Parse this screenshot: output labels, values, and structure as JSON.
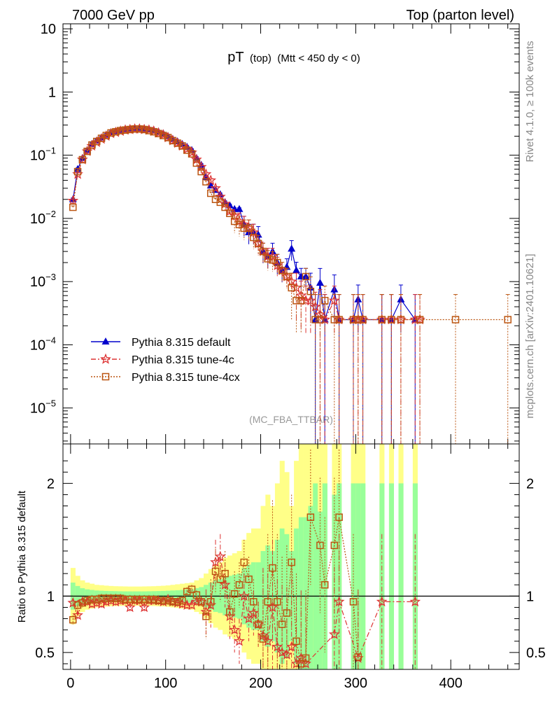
{
  "header": {
    "left": "7000 GeV pp",
    "right": "Top (parton level)"
  },
  "plot_title": {
    "main": "pT",
    "sub1": "(top)",
    "sub2": "(Mtt < 450 dy < 0)"
  },
  "side_labels": {
    "rivet": "Rivet 4.1.0, ≥ 100k events",
    "mcplots": "mcplots.cern.ch [arXiv:2401.10621]"
  },
  "analysis_tag": "(MC_FBA_TTBAR)",
  "ratio_ylabel": "Ratio to Pythia 8.315 default",
  "legend": [
    {
      "label": "Pythia 8.315 default",
      "color": "#0000cc",
      "marker": "triangle"
    },
    {
      "label": "Pythia 8.315 tune-4c",
      "color": "#dd3333",
      "marker": "star"
    },
    {
      "label": "Pythia 8.315 tune-4cx",
      "color": "#bb5511",
      "marker": "square"
    }
  ],
  "chart_data": [
    {
      "type": "line",
      "title": "pT (top) (Mtt < 450 dy < 0)",
      "xlabel": "",
      "ylabel": "",
      "yscale": "log",
      "xlim": [
        -8,
        472
      ],
      "ylim": [
        2.7e-06,
        12
      ],
      "x_ticks": [
        "0",
        "100",
        "200",
        "300",
        "400"
      ],
      "y_ticks": [
        "10^-5",
        "10^-4",
        "10^-3",
        "10^-2",
        "10^-1",
        "1",
        "10"
      ],
      "series": [
        {
          "name": "Pythia 8.315 default",
          "x": [
            2.5,
            7.5,
            12.5,
            17.5,
            22.5,
            27.5,
            32.5,
            37.5,
            42.5,
            47.5,
            52.5,
            57.5,
            62.5,
            67.5,
            72.5,
            77.5,
            82.5,
            87.5,
            92.5,
            97.5,
            102.5,
            107.5,
            112.5,
            117.5,
            122.5,
            127.5,
            132.5,
            137.5,
            142.5,
            147.5,
            152.5,
            157.5,
            162.5,
            167.5,
            172.5,
            177.5,
            182.5,
            187.5,
            192.5,
            197.5,
            202.5,
            207.5,
            212.5,
            217.5,
            222.5,
            227.5,
            232.5,
            237.5,
            242.5,
            247.5,
            252.5,
            257.5,
            262.5,
            267.5,
            277.5,
            282.5,
            297.5,
            302.5,
            307.5,
            327.5,
            337.5,
            347.5,
            362.5
          ],
          "y": [
            0.02,
            0.06,
            0.09,
            0.12,
            0.15,
            0.17,
            0.19,
            0.21,
            0.23,
            0.24,
            0.25,
            0.26,
            0.265,
            0.27,
            0.27,
            0.265,
            0.26,
            0.25,
            0.235,
            0.22,
            0.2,
            0.18,
            0.165,
            0.15,
            0.135,
            0.12,
            0.09,
            0.07,
            0.045,
            0.033,
            0.028,
            0.024,
            0.018,
            0.016,
            0.014,
            0.014,
            0.008,
            0.006,
            0.006,
            0.0055,
            0.003,
            0.0025,
            0.003,
            0.002,
            0.0015,
            0.0017,
            0.0033,
            0.0015,
            0.0012,
            0.0012,
            0.0008,
            0.00025,
            0.00095,
            0.00025,
            0.00075,
            0.00025,
            0.00025,
            0.00052,
            0.00025,
            0.00025,
            0.00025,
            0.00052,
            0.00025
          ],
          "color": "#0000cc"
        },
        {
          "name": "Pythia 8.315 tune-4c",
          "x": [
            2.5,
            7.5,
            12.5,
            17.5,
            22.5,
            27.5,
            32.5,
            37.5,
            42.5,
            47.5,
            52.5,
            57.5,
            62.5,
            67.5,
            72.5,
            77.5,
            82.5,
            87.5,
            92.5,
            97.5,
            102.5,
            107.5,
            112.5,
            117.5,
            122.5,
            127.5,
            132.5,
            137.5,
            142.5,
            147.5,
            152.5,
            157.5,
            162.5,
            167.5,
            172.5,
            177.5,
            182.5,
            187.5,
            192.5,
            197.5,
            202.5,
            207.5,
            212.5,
            217.5,
            222.5,
            227.5,
            232.5,
            237.5,
            242.5,
            247.5,
            252.5,
            257.5,
            262.5,
            267.5,
            277.5,
            282.5,
            297.5,
            302.5,
            307.5,
            327.5,
            337.5,
            347.5,
            362.5,
            367.5
          ],
          "y": [
            0.019,
            0.05,
            0.085,
            0.115,
            0.14,
            0.16,
            0.18,
            0.2,
            0.22,
            0.23,
            0.24,
            0.25,
            0.255,
            0.26,
            0.26,
            0.255,
            0.25,
            0.24,
            0.225,
            0.21,
            0.19,
            0.17,
            0.155,
            0.14,
            0.125,
            0.11,
            0.085,
            0.065,
            0.05,
            0.04,
            0.03,
            0.022,
            0.017,
            0.013,
            0.011,
            0.009,
            0.008,
            0.007,
            0.006,
            0.004,
            0.003,
            0.0025,
            0.0025,
            0.0018,
            0.0015,
            0.0012,
            0.001,
            0.0008,
            0.0006,
            0.0005,
            0.0005,
            0.0004,
            0.0003,
            0.00025,
            0.0005,
            0.00025,
            0.00025,
            0.00025,
            0.00025,
            0.00025,
            0.00025,
            0.00025,
            0.00025,
            0.00025
          ],
          "color": "#dd3333"
        },
        {
          "name": "Pythia 8.315 tune-4cx",
          "x": [
            2.5,
            7.5,
            12.5,
            17.5,
            22.5,
            27.5,
            32.5,
            37.5,
            42.5,
            47.5,
            52.5,
            57.5,
            62.5,
            67.5,
            72.5,
            77.5,
            82.5,
            87.5,
            92.5,
            97.5,
            102.5,
            107.5,
            112.5,
            117.5,
            122.5,
            127.5,
            132.5,
            137.5,
            142.5,
            147.5,
            152.5,
            157.5,
            162.5,
            167.5,
            172.5,
            177.5,
            182.5,
            187.5,
            192.5,
            197.5,
            202.5,
            207.5,
            212.5,
            217.5,
            222.5,
            227.5,
            232.5,
            237.5,
            242.5,
            247.5,
            252.5,
            257.5,
            262.5,
            267.5,
            277.5,
            282.5,
            297.5,
            302.5,
            307.5,
            327.5,
            337.5,
            347.5,
            367.5,
            405,
            460
          ],
          "y": [
            0.015,
            0.055,
            0.085,
            0.115,
            0.145,
            0.165,
            0.185,
            0.205,
            0.225,
            0.235,
            0.245,
            0.25,
            0.255,
            0.26,
            0.26,
            0.255,
            0.245,
            0.235,
            0.22,
            0.205,
            0.19,
            0.17,
            0.155,
            0.14,
            0.12,
            0.105,
            0.075,
            0.055,
            0.038,
            0.025,
            0.02,
            0.018,
            0.015,
            0.012,
            0.009,
            0.008,
            0.007,
            0.007,
            0.005,
            0.004,
            0.003,
            0.0023,
            0.0022,
            0.002,
            0.0015,
            0.0012,
            0.0008,
            0.0005,
            0.0005,
            0.0012,
            0.0007,
            0.00025,
            0.00025,
            0.0005,
            0.00025,
            0.00025,
            0.00025,
            0.00025,
            0.00025,
            0.00025,
            0.00025,
            0.00025,
            0.00025,
            0.00025,
            0.00025
          ],
          "color": "#bb5511"
        }
      ]
    },
    {
      "type": "line",
      "title": "Ratio",
      "ylabel": "Ratio to Pythia 8.315 default",
      "xlim": [
        -8,
        472
      ],
      "ylim": [
        0.35,
        2.35
      ],
      "x_ticks": [
        "0",
        "100",
        "200",
        "300",
        "400"
      ],
      "y_ticks": [
        "0.5",
        "1",
        "2"
      ],
      "reference_line": 1,
      "band_x": [
        2.5,
        7.5,
        12.5,
        17.5,
        22.5,
        27.5,
        32.5,
        37.5,
        42.5,
        47.5,
        52.5,
        57.5,
        62.5,
        67.5,
        72.5,
        77.5,
        82.5,
        87.5,
        92.5,
        97.5,
        102.5,
        107.5,
        112.5,
        117.5,
        122.5,
        127.5,
        132.5,
        137.5,
        142.5,
        147.5,
        152.5,
        157.5,
        162.5,
        167.5,
        172.5,
        177.5,
        182.5,
        187.5,
        192.5,
        197.5,
        202.5,
        207.5,
        212.5,
        217.5,
        222.5,
        227.5,
        232.5,
        237.5,
        242.5,
        247.5,
        252.5,
        257.5,
        262.5,
        267.5,
        277.5,
        282.5,
        297.5,
        302.5,
        307.5,
        327.5,
        337.5,
        347.5,
        362.5
      ],
      "band_stat": [
        0.12,
        0.09,
        0.07,
        0.06,
        0.055,
        0.05,
        0.048,
        0.046,
        0.045,
        0.044,
        0.043,
        0.042,
        0.042,
        0.042,
        0.042,
        0.042,
        0.043,
        0.044,
        0.045,
        0.046,
        0.048,
        0.05,
        0.052,
        0.055,
        0.058,
        0.06,
        0.07,
        0.08,
        0.1,
        0.12,
        0.14,
        0.15,
        0.17,
        0.18,
        0.19,
        0.2,
        0.25,
        0.28,
        0.3,
        0.3,
        0.4,
        0.45,
        0.4,
        0.5,
        0.6,
        0.55,
        0.4,
        0.6,
        0.7,
        0.7,
        0.8,
        1.0,
        0.75,
        1.0,
        0.9,
        1.0,
        1.0,
        1.0,
        1.0,
        1.0,
        1.0,
        1.0,
        1.0
      ],
      "band_total": [
        0.25,
        0.18,
        0.14,
        0.12,
        0.11,
        0.1,
        0.097,
        0.093,
        0.09,
        0.088,
        0.087,
        0.086,
        0.085,
        0.085,
        0.085,
        0.086,
        0.087,
        0.088,
        0.09,
        0.092,
        0.095,
        0.1,
        0.105,
        0.11,
        0.115,
        0.12,
        0.14,
        0.16,
        0.2,
        0.24,
        0.28,
        0.3,
        0.34,
        0.36,
        0.38,
        0.4,
        0.5,
        0.56,
        0.6,
        0.6,
        0.8,
        0.9,
        0.8,
        1.0,
        1.2,
        1.1,
        0.8,
        1.2,
        1.4,
        1.4,
        1.6,
        2.0,
        1.5,
        2.0,
        1.8,
        2.0,
        2.0,
        2.0,
        2.0,
        2.0,
        2.0,
        2.0,
        2.0
      ],
      "series": [
        {
          "name": "Pythia 8.315 tune-4c",
          "x": [
            2.5,
            7.5,
            12.5,
            17.5,
            22.5,
            27.5,
            32.5,
            37.5,
            42.5,
            47.5,
            52.5,
            57.5,
            62.5,
            67.5,
            72.5,
            77.5,
            82.5,
            87.5,
            92.5,
            97.5,
            102.5,
            107.5,
            112.5,
            117.5,
            122.5,
            127.5,
            132.5,
            137.5,
            142.5,
            147.5,
            152.5,
            157.5,
            162.5,
            167.5,
            172.5,
            177.5,
            182.5,
            187.5,
            192.5,
            197.5,
            202.5,
            207.5,
            212.5,
            217.5,
            222.5,
            227.5,
            232.5,
            237.5,
            242.5,
            247.5,
            277.5,
            282.5,
            302.5,
            327.5,
            362.5
          ],
          "y": [
            0.94,
            0.83,
            0.95,
            0.95,
            0.93,
            0.94,
            0.93,
            0.95,
            0.96,
            0.95,
            0.96,
            0.96,
            0.9,
            0.96,
            0.96,
            0.9,
            0.96,
            0.96,
            0.96,
            0.95,
            0.97,
            0.95,
            0.94,
            0.93,
            0.92,
            0.92,
            0.95,
            0.95,
            0.86,
            0.92,
            1.3,
            1.35,
            1.1,
            0.82,
            0.7,
            0.6,
            1.0,
            0.8,
            0.85,
            0.75,
            0.65,
            0.6,
            0.9,
            0.55,
            0.5,
            0.48,
            0.55,
            0.4,
            0.45,
            0.4,
            0.66,
            0.95,
            0.45,
            0.95,
            0.95
          ],
          "color": "#dd3333"
        },
        {
          "name": "Pythia 8.315 tune-4cx",
          "x": [
            2.5,
            7.5,
            12.5,
            17.5,
            22.5,
            27.5,
            32.5,
            37.5,
            42.5,
            47.5,
            52.5,
            57.5,
            62.5,
            67.5,
            72.5,
            77.5,
            82.5,
            87.5,
            92.5,
            97.5,
            102.5,
            107.5,
            112.5,
            117.5,
            122.5,
            127.5,
            132.5,
            137.5,
            142.5,
            147.5,
            152.5,
            157.5,
            162.5,
            167.5,
            172.5,
            177.5,
            182.5,
            187.5,
            192.5,
            197.5,
            202.5,
            207.5,
            212.5,
            217.5,
            222.5,
            227.5,
            232.5,
            237.5,
            242.5,
            247.5,
            252.5,
            262.5,
            267.5,
            277.5,
            282.5,
            297.5,
            302.5
          ],
          "y": [
            0.79,
            0.92,
            0.94,
            0.96,
            0.97,
            0.97,
            0.98,
            0.98,
            0.98,
            0.98,
            0.98,
            0.97,
            0.97,
            0.97,
            0.97,
            0.97,
            0.97,
            0.97,
            0.96,
            0.96,
            0.96,
            0.95,
            0.95,
            0.96,
            1.04,
            1.06,
            1.01,
            0.95,
            0.82,
            0.95,
            1.22,
            1.15,
            1.2,
            0.86,
            1.02,
            1.1,
            1.3,
            1.15,
            0.95,
            0.75,
            0.62,
            0.95,
            1.25,
            0.95,
            0.75,
            0.85,
            1.3,
            0.6,
            0.4,
            0.45,
            1.7,
            1.45,
            1.1,
            1.45,
            1.7,
            0.95,
            0.46
          ],
          "color": "#bb5511"
        }
      ]
    }
  ]
}
